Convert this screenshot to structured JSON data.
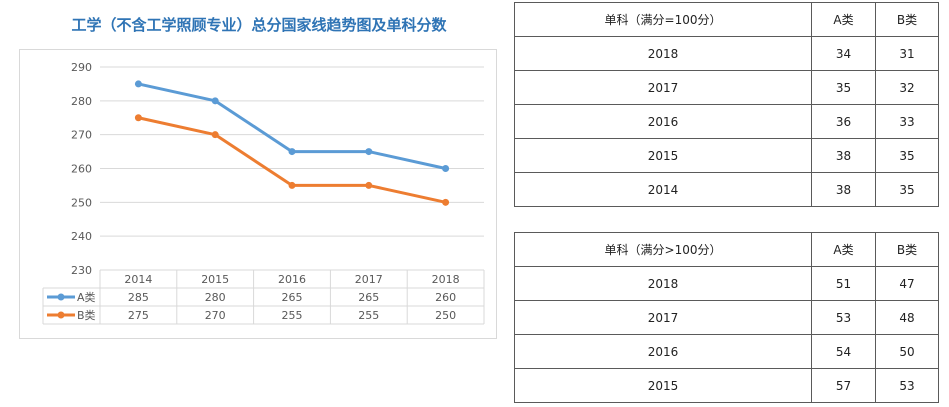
{
  "title": "工学（不含工学照顾专业）总分国家线趋势图及单科分数",
  "chart_data": {
    "type": "line",
    "categories": [
      "2014",
      "2015",
      "2016",
      "2017",
      "2018"
    ],
    "series": [
      {
        "name": "A类",
        "values": [
          285,
          280,
          265,
          265,
          260
        ],
        "color": "#5b9bd5"
      },
      {
        "name": "B类",
        "values": [
          275,
          270,
          255,
          255,
          250
        ],
        "color": "#ed7d31"
      }
    ],
    "yticks": [
      "290",
      "280",
      "270",
      "260",
      "250",
      "240",
      "230"
    ],
    "ylim": [
      230,
      290
    ],
    "grid": true,
    "legend": "data-table-below"
  },
  "table1": {
    "headers": [
      "单科（满分=100分）",
      "A类",
      "B类"
    ],
    "rows": [
      [
        "2018",
        "34",
        "31"
      ],
      [
        "2017",
        "35",
        "32"
      ],
      [
        "2016",
        "36",
        "33"
      ],
      [
        "2015",
        "38",
        "35"
      ],
      [
        "2014",
        "38",
        "35"
      ]
    ]
  },
  "table2": {
    "headers": [
      "单科（满分>100分）",
      "A类",
      "B类"
    ],
    "rows": [
      [
        "2018",
        "51",
        "47"
      ],
      [
        "2017",
        "53",
        "48"
      ],
      [
        "2016",
        "54",
        "50"
      ],
      [
        "2015",
        "57",
        "53"
      ]
    ]
  }
}
